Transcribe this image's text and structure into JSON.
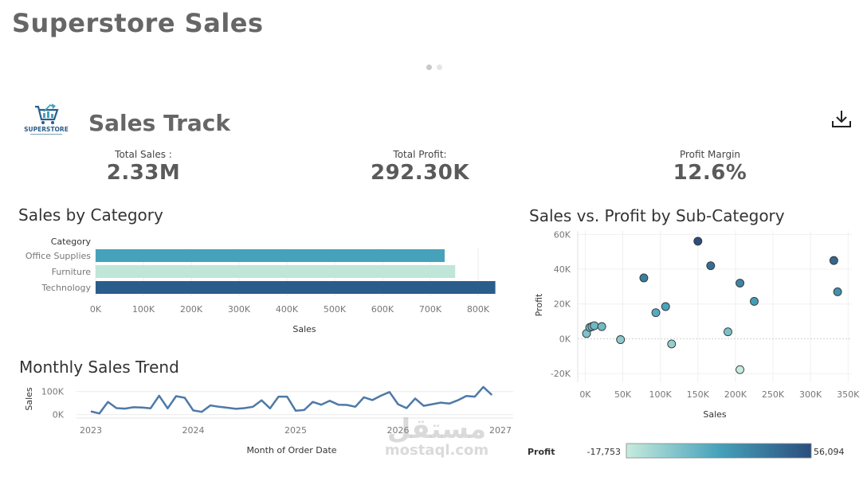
{
  "page": {
    "title": "Superstore Sales"
  },
  "dashboard": {
    "logo_text": "SUPERSTORE",
    "title": "Sales Track",
    "download_icon": "download-icon"
  },
  "kpis": [
    {
      "label": "Total Sales :",
      "value": "2.33M"
    },
    {
      "label": "Total Profit:",
      "value": "292.30K"
    },
    {
      "label": "Profit Margin",
      "value": "12.6%"
    }
  ],
  "watermark": {
    "arabic": "مستقل",
    "latin": "mostaql.com"
  },
  "colors": {
    "dark": "#2b5d8c",
    "mid": "#46a2bb",
    "light": "#bfe6d8",
    "line": "#4e79a7"
  },
  "chart_data": [
    {
      "id": "category",
      "type": "bar",
      "orientation": "horizontal",
      "title": "Sales by Category",
      "category_header": "Category",
      "xlabel": "Sales",
      "categories": [
        "Office Supplies",
        "Furniture",
        "Technology"
      ],
      "values": [
        730000,
        752000,
        836000
      ],
      "bar_colors": [
        "#46a2bb",
        "#bfe6d8",
        "#2b5d8c"
      ],
      "xlim": [
        0,
        860000
      ],
      "xticks": [
        0,
        100000,
        200000,
        300000,
        400000,
        500000,
        600000,
        700000,
        800000
      ],
      "xtick_labels": [
        "0K",
        "100K",
        "200K",
        "300K",
        "400K",
        "500K",
        "600K",
        "700K",
        "800K"
      ]
    },
    {
      "id": "trend",
      "type": "line",
      "title": "Monthly Sales Trend",
      "xlabel": "Month of Order Date",
      "ylabel": "Sales",
      "x": [
        2023.0,
        2023.083,
        2023.167,
        2023.25,
        2023.333,
        2023.417,
        2023.5,
        2023.583,
        2023.667,
        2023.75,
        2023.833,
        2023.917,
        2024.0,
        2024.083,
        2024.167,
        2024.25,
        2024.333,
        2024.417,
        2024.5,
        2024.583,
        2024.667,
        2024.75,
        2024.833,
        2024.917,
        2025.0,
        2025.083,
        2025.167,
        2025.25,
        2025.333,
        2025.417,
        2025.5,
        2025.583,
        2025.667,
        2025.75,
        2025.833,
        2025.917,
        2026.0,
        2026.083,
        2026.167,
        2026.25,
        2026.333,
        2026.417,
        2026.5,
        2026.583,
        2026.667,
        2026.75,
        2026.833,
        2026.917
      ],
      "values": [
        14000,
        5000,
        55000,
        28000,
        26000,
        32000,
        31000,
        27000,
        82000,
        27000,
        80000,
        73000,
        18000,
        12000,
        40000,
        34000,
        30000,
        25000,
        28000,
        34000,
        62000,
        27000,
        78000,
        78000,
        17000,
        20000,
        55000,
        43000,
        60000,
        43000,
        42000,
        34000,
        75000,
        63000,
        82000,
        98000,
        45000,
        28000,
        70000,
        38000,
        45000,
        52000,
        48000,
        62000,
        81000,
        78000,
        120000,
        85000
      ],
      "xlim": [
        2023.0,
        2027.0
      ],
      "xticks": [
        2023,
        2024,
        2025,
        2026,
        2027
      ],
      "xtick_labels": [
        "2023",
        "2024",
        "2025",
        "2026",
        "2027"
      ],
      "ylim": [
        -15000,
        130000
      ],
      "yticks": [
        0,
        100000
      ],
      "ytick_labels": [
        "0K",
        "100K"
      ]
    },
    {
      "id": "scatter",
      "type": "scatter",
      "title": "Sales vs. Profit by Sub-Category",
      "xlabel": "Sales",
      "ylabel": "Profit",
      "points": [
        {
          "x": 1700,
          "y": 3000
        },
        {
          "x": 6000,
          "y": 6500
        },
        {
          "x": 9000,
          "y": 7000
        },
        {
          "x": 12000,
          "y": 7500
        },
        {
          "x": 22000,
          "y": 7000
        },
        {
          "x": 47000,
          "y": -500
        },
        {
          "x": 78000,
          "y": 35000
        },
        {
          "x": 94000,
          "y": 15000
        },
        {
          "x": 107000,
          "y": 18500
        },
        {
          "x": 115000,
          "y": -3000
        },
        {
          "x": 150000,
          "y": 56094
        },
        {
          "x": 167000,
          "y": 42000
        },
        {
          "x": 190000,
          "y": 4000
        },
        {
          "x": 206000,
          "y": -17753
        },
        {
          "x": 206000,
          "y": 32000
        },
        {
          "x": 225000,
          "y": 21500
        },
        {
          "x": 331000,
          "y": 45000
        },
        {
          "x": 336000,
          "y": 27000
        }
      ],
      "xlim": [
        -10000,
        355000
      ],
      "xticks": [
        0,
        50000,
        100000,
        150000,
        200000,
        250000,
        300000,
        350000
      ],
      "xtick_labels": [
        "0K",
        "50K",
        "100K",
        "150K",
        "200K",
        "250K",
        "300K",
        "350K"
      ],
      "ylim": [
        -25000,
        62000
      ],
      "yticks": [
        -20000,
        0,
        20000,
        40000,
        60000
      ],
      "ytick_labels": [
        "-20K",
        "0K",
        "20K",
        "40K",
        "60K"
      ],
      "color_legend": {
        "title": "Profit",
        "min": -17753,
        "max": 56094,
        "min_label": "-17,753",
        "max_label": "56,094"
      }
    }
  ]
}
